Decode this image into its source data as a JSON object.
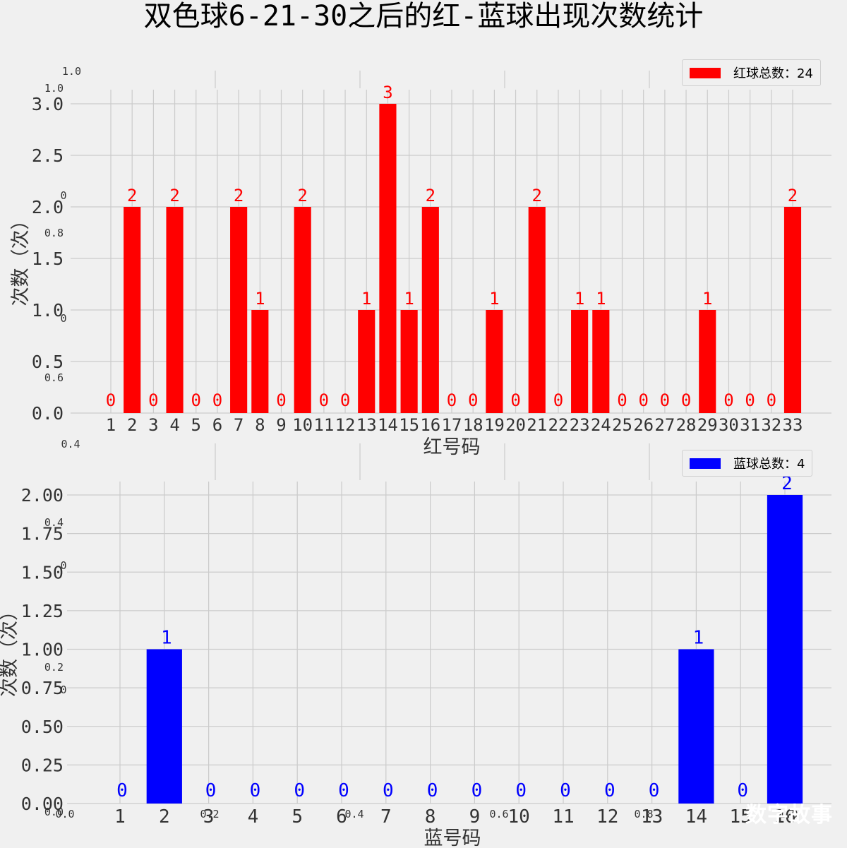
{
  "title": "双色球6-21-30之后的红-蓝球出现次数统计",
  "watermark": "数字故事",
  "colors": {
    "red": "#ff0000",
    "blue": "#0000ff",
    "grid": "#cbcbcb",
    "bg": "#f0f0f0"
  },
  "stray_ticks": {
    "outer_y": [
      "1.0",
      "0.8",
      "0.6",
      "0.4",
      "0.2",
      "0.0"
    ],
    "outer_x": [
      "0.0",
      "0.2",
      "0.4",
      "0.6",
      "0.8",
      "1.0"
    ],
    "zeros": [
      "0",
      "0",
      "0",
      "0"
    ]
  },
  "chart_data": [
    {
      "type": "bar",
      "title": "",
      "xlabel": "红号码",
      "ylabel": "次数（次）",
      "legend": "红球总数：24",
      "legend_position": "top-right",
      "ylim": [
        0,
        3.0
      ],
      "yticks": [
        "0.0",
        "0.5",
        "1.0",
        "1.5",
        "2.0",
        "2.5",
        "3.0"
      ],
      "categories": [
        "1",
        "2",
        "3",
        "4",
        "5",
        "6",
        "7",
        "8",
        "9",
        "10",
        "11",
        "12",
        "13",
        "14",
        "15",
        "16",
        "17",
        "18",
        "19",
        "20",
        "21",
        "22",
        "23",
        "24",
        "25",
        "26",
        "27",
        "28",
        "29",
        "30",
        "31",
        "32",
        "33"
      ],
      "values": [
        0,
        2,
        0,
        2,
        0,
        0,
        2,
        1,
        0,
        2,
        0,
        0,
        1,
        3,
        1,
        2,
        0,
        0,
        1,
        0,
        2,
        0,
        1,
        1,
        0,
        0,
        0,
        0,
        1,
        0,
        0,
        0,
        2
      ],
      "color": "#ff0000"
    },
    {
      "type": "bar",
      "title": "",
      "xlabel": "蓝号码",
      "ylabel": "次数（次）",
      "legend": "蓝球总数：4",
      "legend_position": "top-right",
      "ylim": [
        0,
        2.0
      ],
      "yticks": [
        "0.00",
        "0.25",
        "0.50",
        "0.75",
        "1.00",
        "1.25",
        "1.50",
        "1.75",
        "2.00"
      ],
      "categories": [
        "1",
        "2",
        "3",
        "4",
        "5",
        "6",
        "7",
        "8",
        "9",
        "10",
        "11",
        "12",
        "13",
        "14",
        "15",
        "16"
      ],
      "values": [
        0,
        1,
        0,
        0,
        0,
        0,
        0,
        0,
        0,
        0,
        0,
        0,
        0,
        1,
        0,
        2
      ],
      "color": "#0000ff"
    }
  ]
}
